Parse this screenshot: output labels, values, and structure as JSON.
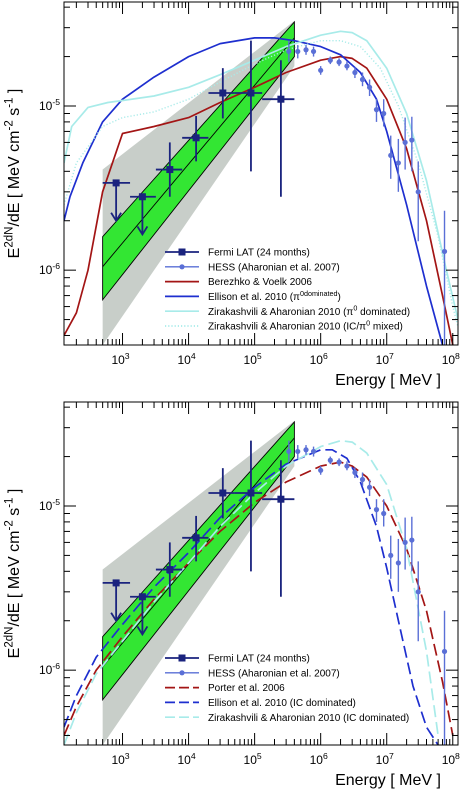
{
  "colors": {
    "band_gray": "#c8cec9",
    "band_green": "#33e633",
    "fermi": "#1a237e",
    "hess": "#5a6fd6",
    "berezhko": "#a31515",
    "ellison": "#1e2fcf",
    "zirak": "#a8ebe9"
  },
  "chart_data": [
    {
      "type": "line",
      "xlabel": "Energy [ MeV ]",
      "ylabel": "E^2dN/dE [ MeV cm^-2 s^-1 ]",
      "log_x": true,
      "log_y": true,
      "xlim": [
        130,
        120000000
      ],
      "ylim": [
        3.5e-07,
        4.3e-05
      ],
      "x_ticks": [
        {
          "v": 1000,
          "label": "10^3"
        },
        {
          "v": 10000,
          "label": "10^4"
        },
        {
          "v": 100000,
          "label": "10^5"
        },
        {
          "v": 1000000,
          "label": "10^6"
        },
        {
          "v": 10000000,
          "label": "10^7"
        },
        {
          "v": 100000000,
          "label": "10^8"
        }
      ],
      "y_ticks": [
        {
          "v": 1e-06,
          "label": "10^-6"
        },
        {
          "v": 1e-05,
          "label": "10^-5"
        }
      ],
      "legend_position": "bottom-right",
      "bands": {
        "gray": {
          "x": [
            500,
            400000
          ],
          "y_low": [
            3.5e-07,
            1.75e-05
          ],
          "y_high": [
            4.1e-06,
            3.3e-05
          ]
        },
        "green": {
          "x": [
            500,
            400000
          ],
          "y_low": [
            6.6e-07,
            2e-05
          ],
          "y_high": [
            1.6e-06,
            3.25e-05
          ]
        },
        "fit": {
          "x": [
            500,
            400000
          ],
          "y": [
            1.05e-06,
            2.6e-05
          ]
        }
      },
      "series": [
        {
          "name": "Fermi LAT (24 months)",
          "kind": "points",
          "marker": "square",
          "color_key": "fermi",
          "points": [
            {
              "x": 800,
              "y": 3.4e-06,
              "upper_limit": true,
              "ul_to": 2e-06,
              "x_lo": 500,
              "x_hi": 1300
            },
            {
              "x": 2000,
              "y": 2.8e-06,
              "upper_limit": true,
              "ul_to": 1.65e-06,
              "x_lo": 1300,
              "x_hi": 3200
            },
            {
              "x": 5200,
              "y": 4.1e-06,
              "y_lo": 2.8e-06,
              "y_hi": 6e-06,
              "x_lo": 3200,
              "x_hi": 8000
            },
            {
              "x": 13000,
              "y": 6.4e-06,
              "y_lo": 4.6e-06,
              "y_hi": 8.7e-06,
              "x_lo": 8000,
              "x_hi": 20000
            },
            {
              "x": 33000,
              "y": 1.2e-05,
              "y_lo": 8.4e-06,
              "y_hi": 1.7e-05,
              "x_lo": 20000,
              "x_hi": 50000
            },
            {
              "x": 88000,
              "y": 1.2e-05,
              "y_lo": 4e-06,
              "y_hi": 2.5e-05,
              "x_lo": 50000,
              "x_hi": 130000
            },
            {
              "x": 250000,
              "y": 1.1e-05,
              "y_lo": 2.8e-06,
              "y_hi": 1.9e-05,
              "x_lo": 130000,
              "x_hi": 400000
            }
          ]
        },
        {
          "name": "HESS (Aharonian et al. 2007)",
          "kind": "points",
          "marker": "circle",
          "color_key": "hess",
          "points": [
            {
              "x": 330000,
              "y": 2.15e-05,
              "y_lo": 1.85e-05,
              "y_hi": 2.5e-05
            },
            {
              "x": 450000,
              "y": 2.15e-05,
              "y_lo": 1.95e-05,
              "y_hi": 2.35e-05
            },
            {
              "x": 600000,
              "y": 2.2e-05,
              "y_lo": 2.05e-05,
              "y_hi": 2.35e-05
            },
            {
              "x": 780000,
              "y": 2.15e-05,
              "y_lo": 2e-05,
              "y_hi": 2.3e-05
            },
            {
              "x": 1000000,
              "y": 1.65e-05,
              "y_lo": 1.55e-05,
              "y_hi": 1.75e-05
            },
            {
              "x": 1400000,
              "y": 1.9e-05,
              "y_lo": 1.8e-05,
              "y_hi": 2e-05
            },
            {
              "x": 1900000,
              "y": 1.85e-05,
              "y_lo": 1.75e-05,
              "y_hi": 1.95e-05
            },
            {
              "x": 2500000,
              "y": 1.75e-05,
              "y_lo": 1.65e-05,
              "y_hi": 1.87e-05
            },
            {
              "x": 3300000,
              "y": 1.6e-05,
              "y_lo": 1.48e-05,
              "y_hi": 1.72e-05
            },
            {
              "x": 4300000,
              "y": 1.45e-05,
              "y_lo": 1.32e-05,
              "y_hi": 1.6e-05
            },
            {
              "x": 5500000,
              "y": 1.3e-05,
              "y_lo": 1.15e-05,
              "y_hi": 1.45e-05
            },
            {
              "x": 7000000,
              "y": 9.5e-06,
              "y_lo": 8e-06,
              "y_hi": 1.1e-05
            },
            {
              "x": 9000000,
              "y": 9e-06,
              "y_lo": 7.5e-06,
              "y_hi": 1.1e-05
            },
            {
              "x": 11500000,
              "y": 5e-06,
              "y_lo": 3.6e-06,
              "y_hi": 6.6e-06
            },
            {
              "x": 15000000,
              "y": 4.5e-06,
              "y_lo": 3e-06,
              "y_hi": 6.3e-06
            },
            {
              "x": 19000000,
              "y": 6e-06,
              "y_lo": 4.1e-06,
              "y_hi": 8.5e-06
            },
            {
              "x": 24000000,
              "y": 6.2e-06,
              "y_lo": 4e-06,
              "y_hi": 8.6e-06
            },
            {
              "x": 30000000,
              "y": 3e-06,
              "y_lo": 1.5e-06,
              "y_hi": 4.6e-06
            },
            {
              "x": 75000000,
              "y": 1.3e-06,
              "y_lo": 3.5e-07,
              "y_hi": 2.3e-06
            }
          ]
        },
        {
          "name": "Berezhko & Voelk 2006",
          "kind": "line",
          "dash": "solid",
          "color_key": "berezhko",
          "x": [
            130,
            200,
            300,
            500,
            1000,
            3000,
            10000,
            30000,
            100000,
            300000,
            1000000,
            2000000,
            3000000,
            5000000,
            10000000,
            20000000,
            40000000,
            70000000,
            100000000
          ],
          "y": [
            4e-07,
            5.5e-07,
            1e-06,
            3e-06,
            6.8e-06,
            7.5e-06,
            8.5e-06,
            1.05e-05,
            1.3e-05,
            1.6e-05,
            1.9e-05,
            2e-05,
            1.95e-05,
            1.7e-05,
            1.1e-05,
            5.5e-06,
            2e-06,
            7e-07,
            3.5e-07
          ]
        },
        {
          "name": "Ellison et al. 2010 (π^0dominated)",
          "kind": "line",
          "dash": "solid",
          "color_key": "ellison",
          "x": [
            130,
            160,
            250,
            500,
            1000,
            3000,
            10000,
            30000,
            100000,
            200000,
            400000,
            1000000,
            2000000,
            4000000,
            7000000,
            10000000,
            20000000,
            40000000,
            70000000
          ],
          "y": [
            2e-06,
            2.8e-06,
            4.5e-06,
            8e-06,
            1.1e-05,
            1.5e-05,
            2e-05,
            2.4e-05,
            2.6e-05,
            2.6e-05,
            2.5e-05,
            2.3e-05,
            2.05e-05,
            1.6e-05,
            1.1e-05,
            7e-06,
            2.5e-06,
            8e-07,
            3.5e-07
          ]
        },
        {
          "name": "Zirakashvili & Aharonian 2010 (π^0 dominated)",
          "kind": "line",
          "dash": "solid",
          "color_key": "zirak",
          "x": [
            130,
            170,
            300,
            600,
            1000,
            3000,
            10000,
            30000,
            100000,
            300000,
            1000000,
            2000000,
            3000000,
            5000000,
            10000000,
            20000000,
            40000000,
            80000000,
            120000000
          ],
          "y": [
            4.5e-06,
            7.5e-06,
            9.8e-06,
            1.05e-05,
            1.08e-05,
            1.15e-05,
            1.3e-05,
            1.55e-05,
            1.9e-05,
            2.3e-05,
            2.7e-05,
            2.85e-05,
            2.8e-05,
            2.5e-05,
            1.7e-05,
            9e-06,
            3.5e-06,
            1e-06,
            5e-07
          ]
        },
        {
          "name": "Zirakashvili & Aharonian 2010 (IC/π^0 mixed)",
          "kind": "line",
          "dash": "dotted",
          "color_key": "zirak",
          "x": [
            130,
            200,
            500,
            1000,
            3000,
            10000,
            30000,
            100000,
            300000,
            1000000,
            2000000,
            4000000,
            8000000,
            15000000,
            30000000,
            60000000,
            100000000,
            120000000
          ],
          "y": [
            2.5e-06,
            4.5e-06,
            7.5e-06,
            8.5e-06,
            9.2e-06,
            1.1e-05,
            1.4e-05,
            1.8e-05,
            2.2e-05,
            2.5e-05,
            2.5e-05,
            2.3e-05,
            1.7e-05,
            1e-05,
            4.5e-06,
            1.6e-06,
            6e-07,
            4.5e-07
          ]
        }
      ]
    },
    {
      "type": "line",
      "xlabel": "Energy [ MeV ]",
      "ylabel": "E^2dN/dE [ MeV cm^-2 s^-1 ]",
      "log_x": true,
      "log_y": true,
      "xlim": [
        130,
        120000000
      ],
      "ylim": [
        3.5e-07,
        4.3e-05
      ],
      "x_ticks": [
        {
          "v": 1000,
          "label": "10^3"
        },
        {
          "v": 10000,
          "label": "10^4"
        },
        {
          "v": 100000,
          "label": "10^5"
        },
        {
          "v": 1000000,
          "label": "10^6"
        },
        {
          "v": 10000000,
          "label": "10^7"
        },
        {
          "v": 100000000,
          "label": "10^8"
        }
      ],
      "y_ticks": [
        {
          "v": 1e-06,
          "label": "10^-6"
        },
        {
          "v": 1e-05,
          "label": "10^-5"
        }
      ],
      "legend_position": "bottom-right",
      "bands": {
        "gray": {
          "x": [
            500,
            400000
          ],
          "y_low": [
            3.5e-07,
            1.75e-05
          ],
          "y_high": [
            4.1e-06,
            3.3e-05
          ]
        },
        "green": {
          "x": [
            500,
            400000
          ],
          "y_low": [
            6.6e-07,
            2e-05
          ],
          "y_high": [
            1.6e-06,
            3.25e-05
          ]
        },
        "fit": {
          "x": [
            500,
            400000
          ],
          "y": [
            1.05e-06,
            2.6e-05
          ]
        }
      },
      "series": [
        {
          "name": "Fermi LAT (24 months)",
          "kind": "points",
          "marker": "square",
          "color_key": "fermi",
          "points": [
            {
              "x": 800,
              "y": 3.4e-06,
              "upper_limit": true,
              "ul_to": 2e-06,
              "x_lo": 500,
              "x_hi": 1300
            },
            {
              "x": 2000,
              "y": 2.8e-06,
              "upper_limit": true,
              "ul_to": 1.65e-06,
              "x_lo": 1300,
              "x_hi": 3200
            },
            {
              "x": 5200,
              "y": 4.1e-06,
              "y_lo": 2.8e-06,
              "y_hi": 6e-06,
              "x_lo": 3200,
              "x_hi": 8000
            },
            {
              "x": 13000,
              "y": 6.4e-06,
              "y_lo": 4.6e-06,
              "y_hi": 8.7e-06,
              "x_lo": 8000,
              "x_hi": 20000
            },
            {
              "x": 33000,
              "y": 1.2e-05,
              "y_lo": 8.4e-06,
              "y_hi": 1.7e-05,
              "x_lo": 20000,
              "x_hi": 50000
            },
            {
              "x": 88000,
              "y": 1.2e-05,
              "y_lo": 4e-06,
              "y_hi": 2.5e-05,
              "x_lo": 50000,
              "x_hi": 130000
            },
            {
              "x": 250000,
              "y": 1.1e-05,
              "y_lo": 2.8e-06,
              "y_hi": 1.9e-05,
              "x_lo": 130000,
              "x_hi": 400000
            }
          ]
        },
        {
          "name": "HESS (Aharonian et al. 2007)",
          "kind": "points",
          "marker": "circle",
          "color_key": "hess",
          "points": [
            {
              "x": 330000,
              "y": 2.15e-05,
              "y_lo": 1.85e-05,
              "y_hi": 2.5e-05
            },
            {
              "x": 450000,
              "y": 2.15e-05,
              "y_lo": 1.95e-05,
              "y_hi": 2.35e-05
            },
            {
              "x": 600000,
              "y": 2.2e-05,
              "y_lo": 2.05e-05,
              "y_hi": 2.35e-05
            },
            {
              "x": 780000,
              "y": 2.15e-05,
              "y_lo": 2e-05,
              "y_hi": 2.3e-05
            },
            {
              "x": 1000000,
              "y": 1.65e-05,
              "y_lo": 1.55e-05,
              "y_hi": 1.75e-05
            },
            {
              "x": 1400000,
              "y": 1.9e-05,
              "y_lo": 1.8e-05,
              "y_hi": 2e-05
            },
            {
              "x": 1900000,
              "y": 1.85e-05,
              "y_lo": 1.75e-05,
              "y_hi": 1.95e-05
            },
            {
              "x": 2500000,
              "y": 1.75e-05,
              "y_lo": 1.65e-05,
              "y_hi": 1.87e-05
            },
            {
              "x": 3300000,
              "y": 1.6e-05,
              "y_lo": 1.48e-05,
              "y_hi": 1.72e-05
            },
            {
              "x": 4300000,
              "y": 1.45e-05,
              "y_lo": 1.32e-05,
              "y_hi": 1.6e-05
            },
            {
              "x": 5500000,
              "y": 1.3e-05,
              "y_lo": 1.15e-05,
              "y_hi": 1.45e-05
            },
            {
              "x": 7000000,
              "y": 9.5e-06,
              "y_lo": 8e-06,
              "y_hi": 1.1e-05
            },
            {
              "x": 9000000,
              "y": 9e-06,
              "y_lo": 7.5e-06,
              "y_hi": 1.1e-05
            },
            {
              "x": 11500000,
              "y": 5e-06,
              "y_lo": 3.6e-06,
              "y_hi": 6.6e-06
            },
            {
              "x": 15000000,
              "y": 4.5e-06,
              "y_lo": 3e-06,
              "y_hi": 6.3e-06
            },
            {
              "x": 19000000,
              "y": 6e-06,
              "y_lo": 4.1e-06,
              "y_hi": 8.5e-06
            },
            {
              "x": 24000000,
              "y": 6.2e-06,
              "y_lo": 4e-06,
              "y_hi": 8.6e-06
            },
            {
              "x": 30000000,
              "y": 3e-06,
              "y_lo": 1.5e-06,
              "y_hi": 4.6e-06
            },
            {
              "x": 75000000,
              "y": 1.3e-06,
              "y_lo": 3.5e-07,
              "y_hi": 2.3e-06
            }
          ]
        },
        {
          "name": "Porter et al. 2006",
          "kind": "line",
          "dash": "long-dash",
          "color_key": "berezhko",
          "x": [
            130,
            200,
            400,
            1000,
            3000,
            10000,
            30000,
            100000,
            300000,
            1000000,
            2000000,
            3000000,
            5000000,
            10000000,
            20000000,
            40000000,
            70000000,
            100000000
          ],
          "y": [
            4e-07,
            6e-07,
            1e-06,
            1.6e-06,
            2.7e-06,
            4.5e-06,
            7e-06,
            1.05e-05,
            1.4e-05,
            1.75e-05,
            1.85e-05,
            1.75e-05,
            1.5e-05,
            1e-05,
            5.5e-06,
            2.3e-06,
            8.5e-07,
            4e-07
          ]
        },
        {
          "name": "Ellison et al. 2010 (IC dominated)",
          "kind": "line",
          "dash": "long-dash",
          "color_key": "ellison",
          "x": [
            130,
            200,
            400,
            1000,
            3000,
            10000,
            30000,
            100000,
            300000,
            1000000,
            1500000,
            2500000,
            4000000,
            7000000,
            10000000,
            15000000,
            25000000,
            40000000,
            60000000
          ],
          "y": [
            4.5e-07,
            7e-07,
            1.2e-06,
            1.9e-06,
            3.2e-06,
            5.2e-06,
            8.5e-06,
            1.3e-05,
            1.8e-05,
            2.2e-05,
            2.2e-05,
            1.95e-05,
            1.4e-05,
            7.5e-06,
            4.2e-06,
            2e-06,
            8e-07,
            4.5e-07,
            3.5e-07
          ]
        },
        {
          "name": "Zirakashvili & Aharonian 2010 (IC dominated)",
          "kind": "line",
          "dash": "long-dash",
          "color_key": "zirak",
          "x": [
            130,
            200,
            400,
            1000,
            3000,
            10000,
            30000,
            100000,
            300000,
            1000000,
            2000000,
            3000000,
            5000000,
            10000000,
            20000000,
            40000000,
            60000000
          ],
          "y": [
            3.5e-07,
            5.5e-07,
            9.5e-07,
            1.5e-06,
            2.6e-06,
            4.5e-06,
            7.5e-06,
            1.2e-05,
            1.75e-05,
            2.3e-05,
            2.5e-05,
            2.45e-05,
            2.1e-05,
            1.35e-05,
            5.5e-06,
            1.3e-06,
            4e-07
          ]
        }
      ]
    }
  ]
}
